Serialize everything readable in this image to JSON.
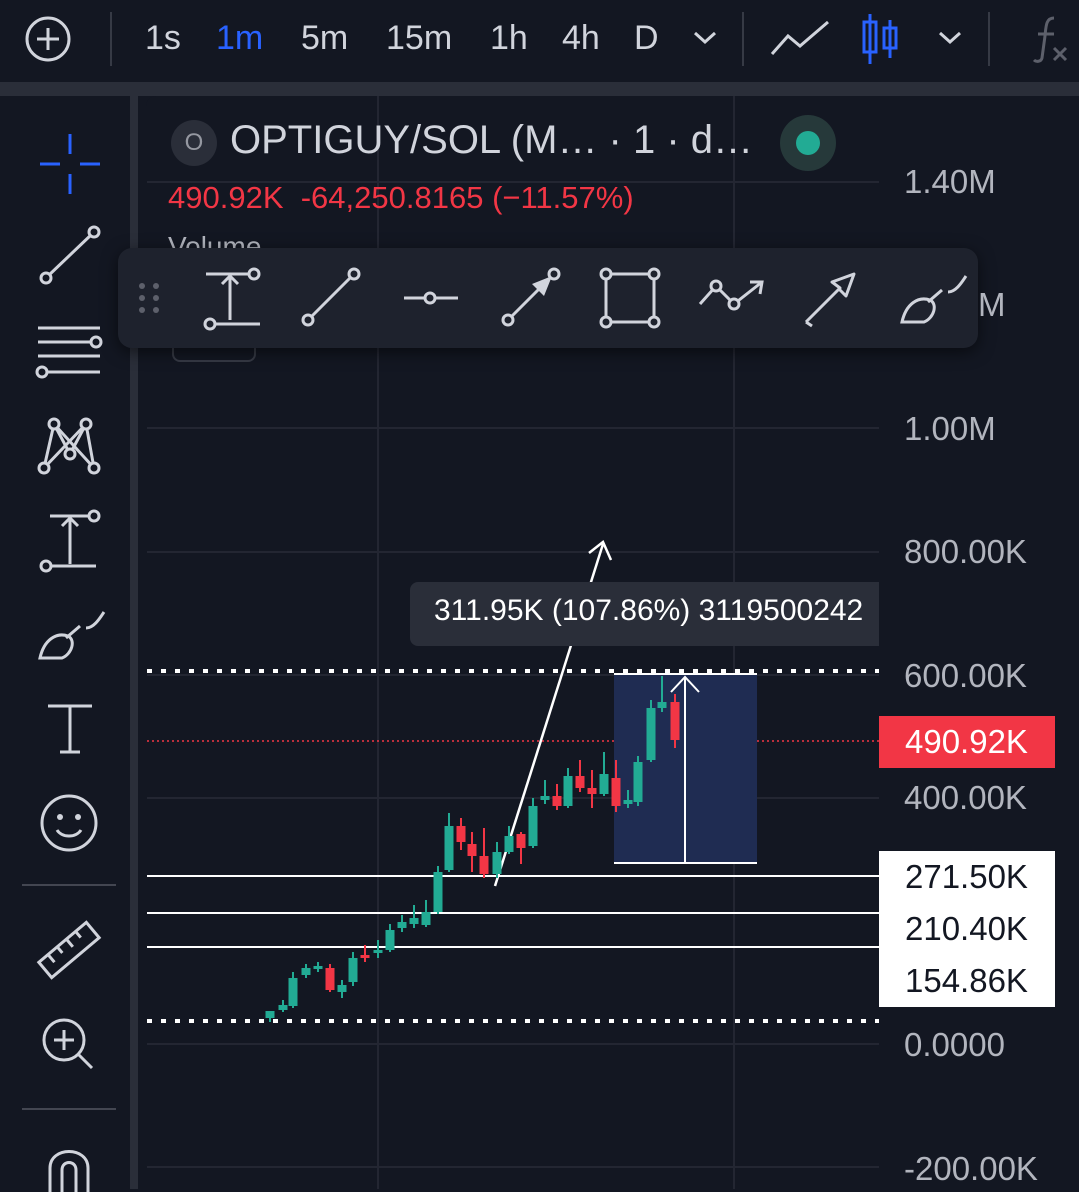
{
  "header": {
    "timeframes": [
      "1s",
      "1m",
      "5m",
      "15m",
      "1h",
      "4h",
      "D"
    ],
    "active_timeframe": "1m"
  },
  "legend": {
    "symbol_badge": "O",
    "title": "OPTIGUY/SOL (M…  · 1 · d…",
    "last_price": "490.92K",
    "change": "-64,250.8165 (−11.57%)",
    "volume_label": "Volume"
  },
  "price_axis": {
    "labels": [
      "1.40M",
      "M",
      "1.00M",
      "800.00K",
      "600.00K",
      "400.00K",
      "0.0000",
      "-200.00K"
    ],
    "current_price_tag": "490.92K",
    "line_tags": [
      "271.50K",
      "210.40K",
      "154.86K"
    ]
  },
  "measure_tooltip": {
    "text": "311.95K (107.86%) 3119500242"
  },
  "colors": {
    "up": "#22ab94",
    "down": "#f23645",
    "accent": "#2962ff",
    "background": "#131722"
  }
}
